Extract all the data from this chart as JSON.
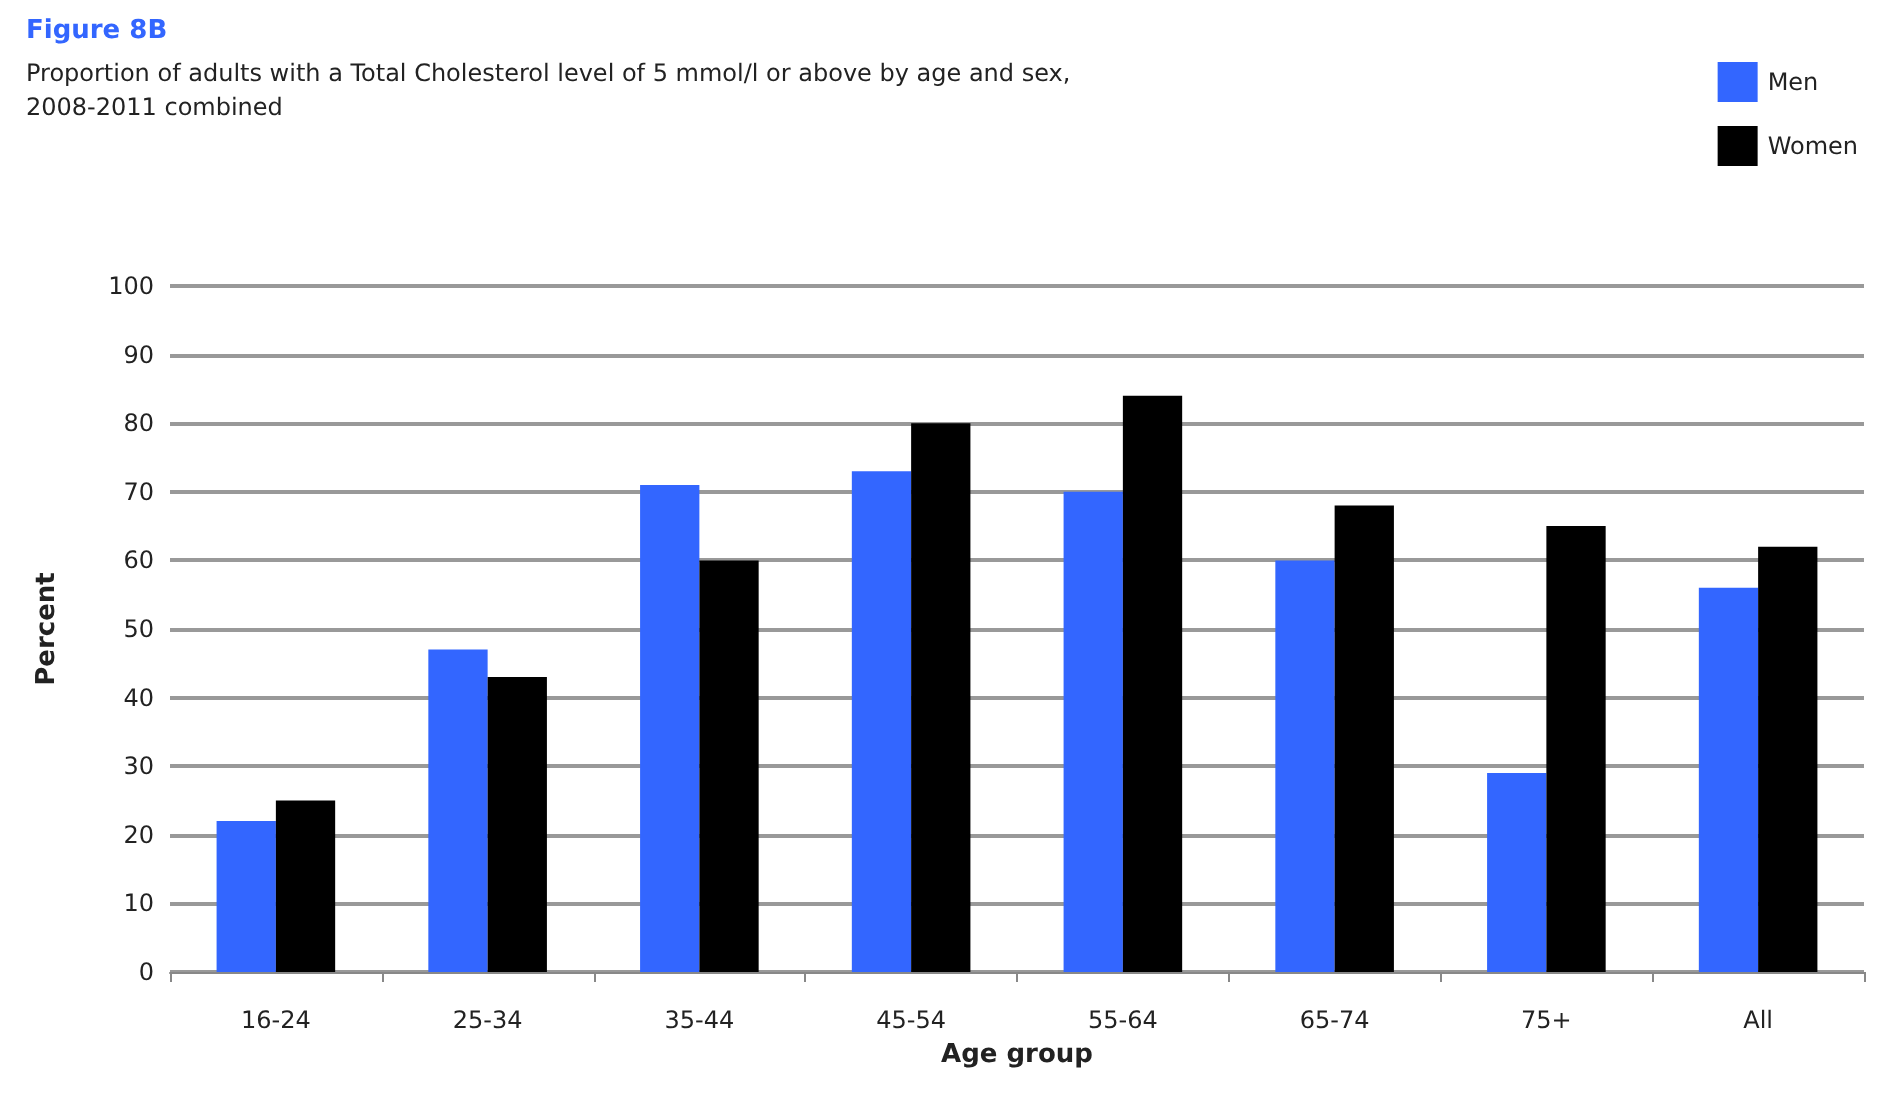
{
  "chart_data": {
    "type": "bar",
    "title": "Figure 8B",
    "subtitle": "Proportion of adults with a Total Cholesterol level of 5 mmol/l or above by age and sex,\n2008-2011 combined",
    "xlabel": "Age group",
    "ylabel": "Percent",
    "categories": [
      "16-24",
      "25-34",
      "35-44",
      "45-54",
      "55-64",
      "65-74",
      "75+",
      "All"
    ],
    "series": [
      {
        "name": "Men",
        "color": "#3366ff",
        "values": [
          22,
          47,
          71,
          73,
          70,
          60,
          29,
          56
        ]
      },
      {
        "name": "Women",
        "color": "#000000",
        "values": [
          25,
          43,
          60,
          80,
          84,
          68,
          65,
          62
        ]
      }
    ],
    "ylim": [
      0,
      100
    ],
    "yticks": [
      0,
      10,
      20,
      30,
      40,
      50,
      60,
      70,
      80,
      90,
      100
    ],
    "grid": "y",
    "legend": "top right"
  }
}
